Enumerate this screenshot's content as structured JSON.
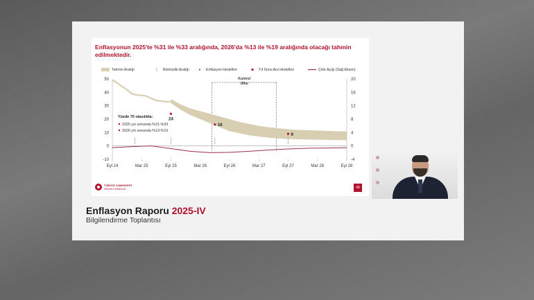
{
  "slide": {
    "title": "Enflasyonun 2025'te %31 ile %33 aralığında, 2026'da %13 ile %19 aralığında olacağı tahmin edilmektedir.",
    "page_number": "49",
    "logo_text_1": "TÜRKİYE CUMHURİYET",
    "logo_text_2": "MERKEZ BANKASI"
  },
  "report": {
    "title_main": "Enflasyon Raporu",
    "title_accent": "2025-IV",
    "subtitle": "Bilgilendirme Toplantısı"
  },
  "chart_data": {
    "type": "line",
    "legend": [
      {
        "label": "Tahmin Aralığı",
        "color": "#d8cfb2"
      },
      {
        "label": "Belirsizlik Aralığı",
        "color": "#333333"
      },
      {
        "label": "Enflasyon Hedefleri",
        "color": "#333333"
      },
      {
        "label": "Yıl Sonu Ara Hedefleri",
        "color": "#b0112b"
      },
      {
        "label": "Çıktı Açığı (Sağ Eksen)",
        "color": "#9b2d5a"
      }
    ],
    "x_ticks": [
      "Eyl 24",
      "Mar 25",
      "Eyl 25",
      "Mar 26",
      "Eyl 26",
      "Mar 27",
      "Eyl 27",
      "Mar 28",
      "Eyl 28"
    ],
    "y_left_ticks": [
      "50",
      "40",
      "30",
      "20",
      "10",
      "0",
      "-10"
    ],
    "y_right_ticks": [
      "20",
      "16",
      "12",
      "8",
      "4",
      "0",
      "-4"
    ],
    "ylim_left": [
      -10,
      50
    ],
    "ylim_right": [
      -4,
      20
    ],
    "control_label_1": "Kontrol",
    "control_label_2": "Ufku",
    "inflation_history": [
      [
        0,
        49.4
      ],
      [
        0.5,
        47
      ],
      [
        1,
        44.4
      ],
      [
        1.5,
        42
      ],
      [
        2,
        39
      ],
      [
        2.5,
        38
      ],
      [
        3,
        37.9
      ],
      [
        3.5,
        37.2
      ],
      [
        4,
        35.4
      ],
      [
        4.5,
        34
      ],
      [
        5,
        33.5
      ],
      [
        5.5,
        32.9
      ],
      [
        6,
        33.3
      ]
    ],
    "forecast_upper": [
      [
        6,
        35
      ],
      [
        7,
        31
      ],
      [
        8,
        28
      ],
      [
        9,
        26
      ],
      [
        10,
        24
      ],
      [
        11,
        22
      ],
      [
        12,
        20
      ],
      [
        13,
        18
      ],
      [
        14,
        16.5
      ],
      [
        15,
        15
      ],
      [
        16,
        14
      ],
      [
        17,
        13.2
      ],
      [
        18,
        12.5
      ],
      [
        19,
        12
      ],
      [
        20,
        11.8
      ],
      [
        21,
        11.5
      ],
      [
        22,
        11.2
      ],
      [
        23,
        11
      ],
      [
        24,
        10.8
      ]
    ],
    "forecast_lower": [
      [
        6,
        32
      ],
      [
        7,
        27
      ],
      [
        8,
        23
      ],
      [
        9,
        20
      ],
      [
        10,
        17
      ],
      [
        11,
        14
      ],
      [
        12,
        11
      ],
      [
        13,
        9.5
      ],
      [
        14,
        8
      ],
      [
        15,
        7
      ],
      [
        16,
        6.2
      ],
      [
        17,
        5.6
      ],
      [
        18,
        5.2
      ],
      [
        19,
        5
      ],
      [
        20,
        4.8
      ],
      [
        21,
        4.6
      ],
      [
        22,
        4.5
      ],
      [
        23,
        4.4
      ],
      [
        24,
        4.3
      ]
    ],
    "interim_targets": [
      {
        "x": 6,
        "y": 24,
        "label": "24"
      },
      {
        "x": 10.5,
        "y": 16,
        "label": "16"
      },
      {
        "x": 18,
        "y": 9,
        "label": "9"
      }
    ],
    "output_gap": [
      [
        0,
        -0.5
      ],
      [
        2,
        -0.2
      ],
      [
        4,
        0
      ],
      [
        6,
        -0.8
      ],
      [
        8,
        -1.6
      ],
      [
        10,
        -2
      ],
      [
        12,
        -1.9
      ],
      [
        14,
        -1.6
      ],
      [
        16,
        -1.2
      ],
      [
        18,
        -0.9
      ],
      [
        20,
        -0.7
      ],
      [
        22,
        -0.6
      ],
      [
        24,
        -0.5
      ]
    ],
    "probability_box": {
      "heading": "Yüzde 70 olasılıkla:",
      "line1": "2025 yılı sonunda %31-%33",
      "line2": "2026 yılı sonunda %13-%19"
    }
  }
}
